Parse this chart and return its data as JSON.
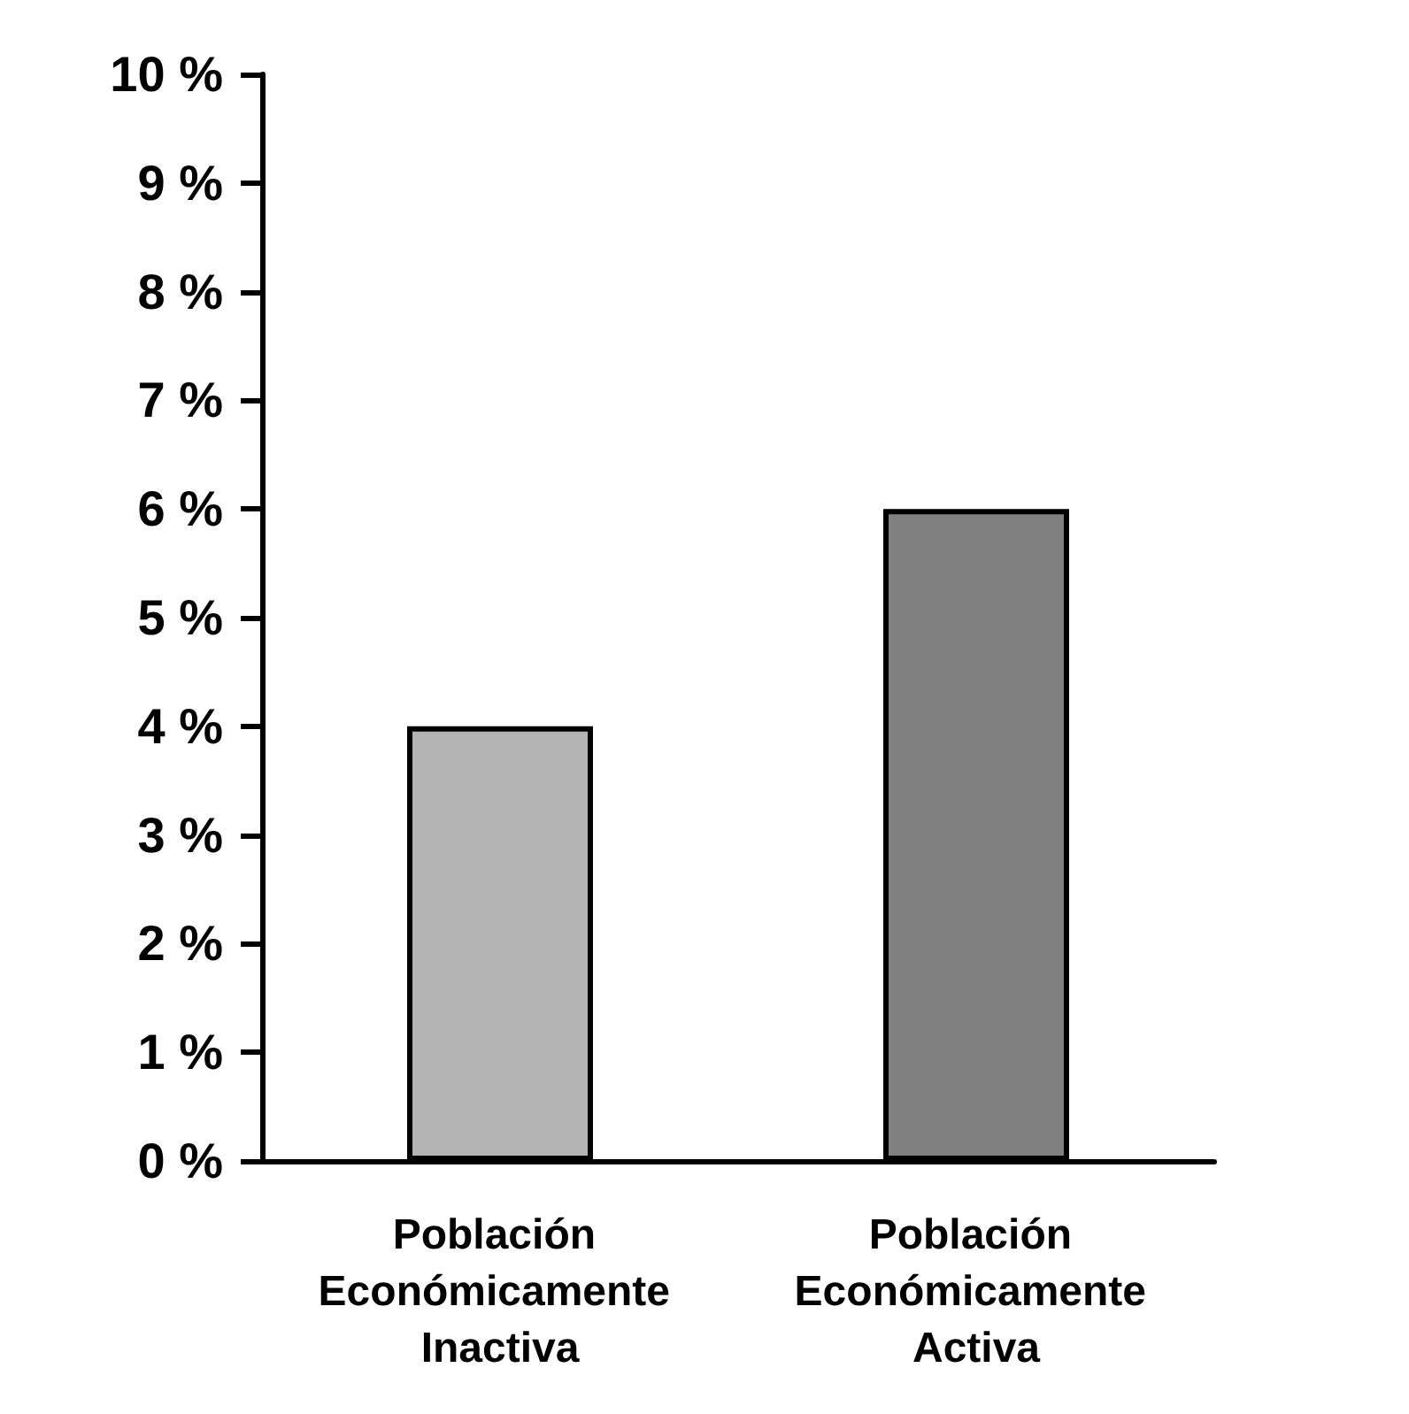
{
  "chart_data": {
    "type": "bar",
    "categories": [
      "Población Económicamente Inactiva",
      "Población Económicamente Activa"
    ],
    "values": [
      4,
      6
    ],
    "colors": [
      "#b4b4b4",
      "#808080"
    ],
    "ylim": [
      0,
      10
    ],
    "yticks": [
      {
        "value": 0,
        "label": "0 %"
      },
      {
        "value": 1,
        "label": "1 %"
      },
      {
        "value": 2,
        "label": "2 %"
      },
      {
        "value": 3,
        "label": "3 %"
      },
      {
        "value": 4,
        "label": "4 %"
      },
      {
        "value": 5,
        "label": "5 %"
      },
      {
        "value": 6,
        "label": "6 %"
      },
      {
        "value": 7,
        "label": "7 %"
      },
      {
        "value": 8,
        "label": "8 %"
      },
      {
        "value": 9,
        "label": "9 %"
      },
      {
        "value": 10,
        "label": "10 %"
      }
    ],
    "grid": false
  }
}
